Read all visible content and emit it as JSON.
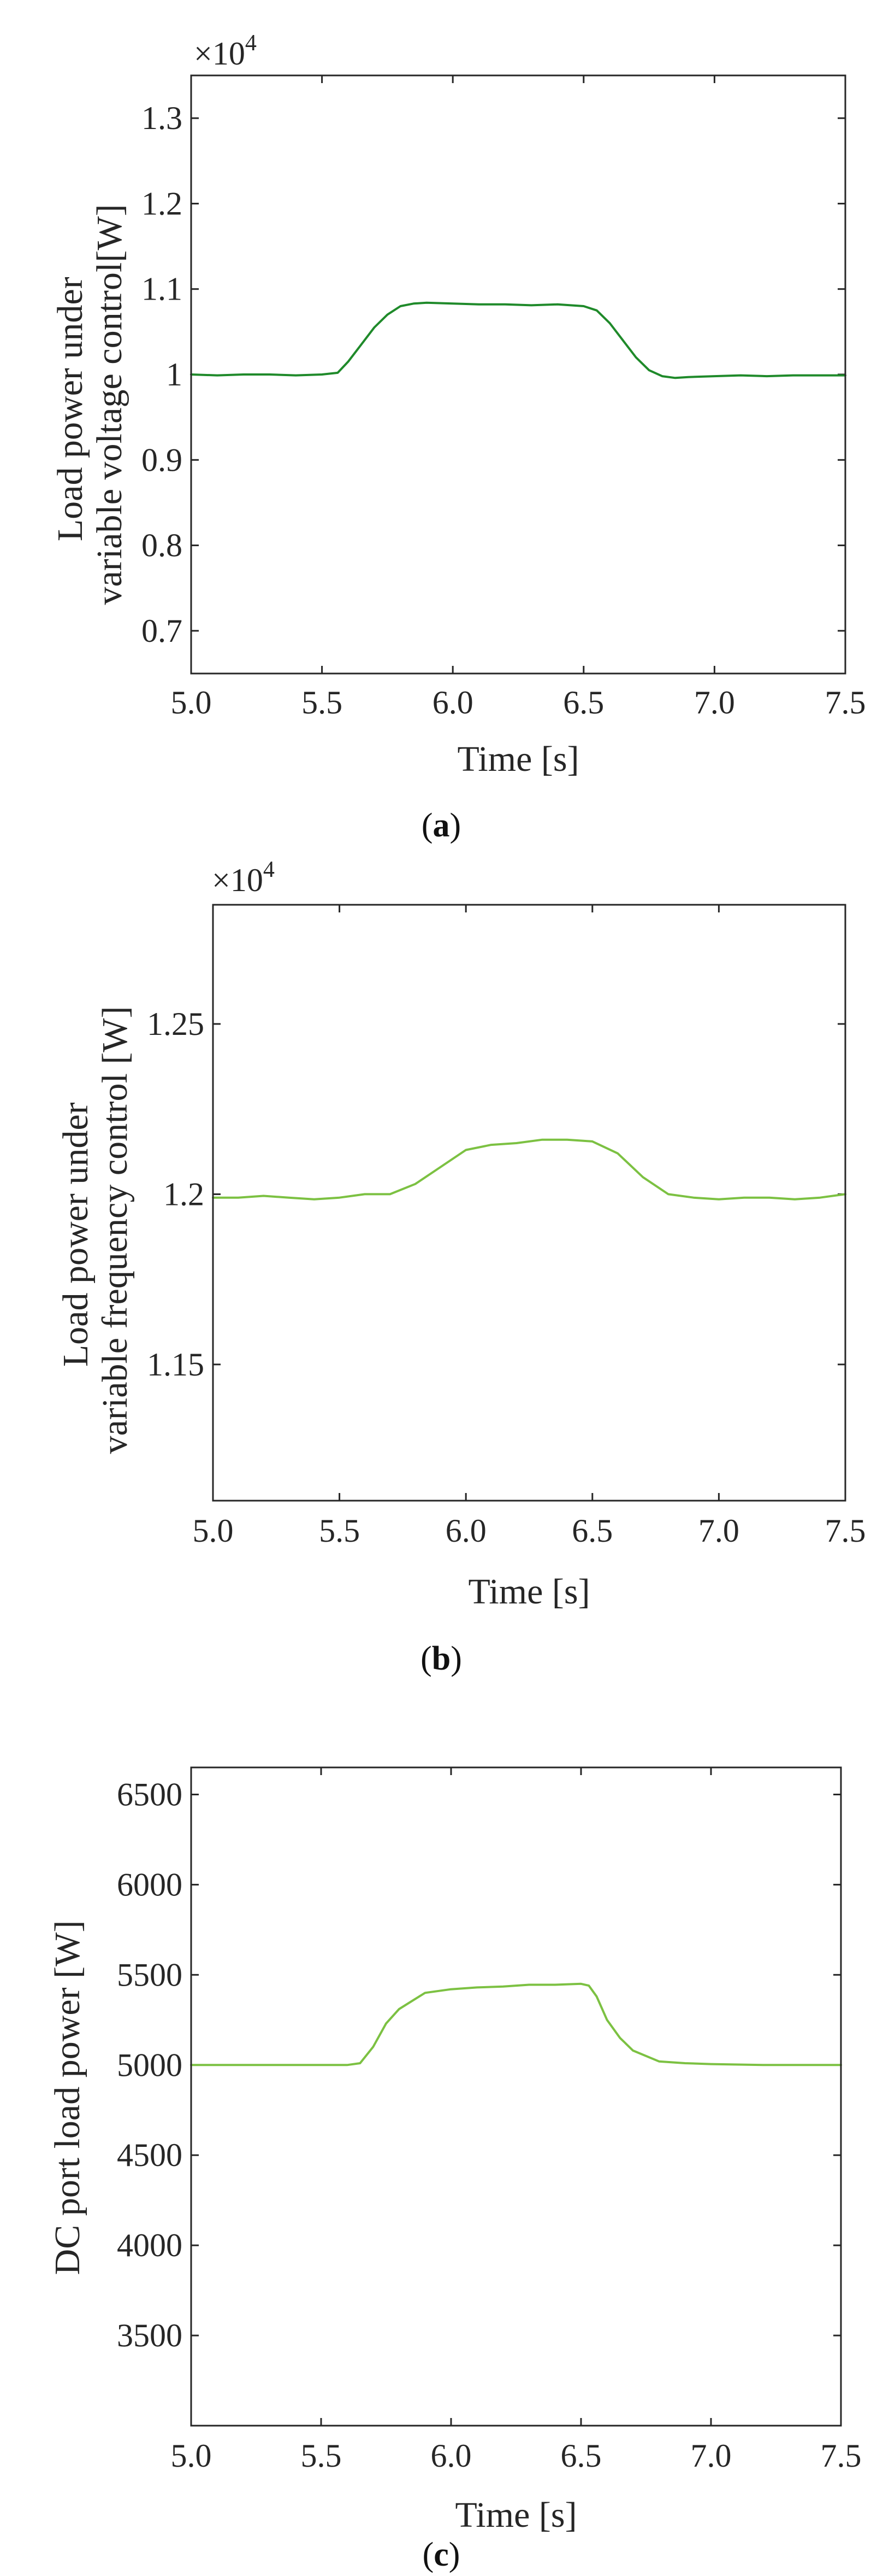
{
  "chart_data": [
    {
      "type": "line",
      "panel_label": "a",
      "xlabel": "Time [s]",
      "ylabel": [
        "Load power under",
        "variable voltage control[W]"
      ],
      "y_multiplier_text": "×10",
      "y_multiplier_exp": "4",
      "xlim": [
        5.0,
        7.5
      ],
      "ylim": [
        0.65,
        1.35
      ],
      "x_ticks": [
        5.0,
        5.5,
        6.0,
        6.5,
        7.0,
        7.5
      ],
      "x_tick_labels": [
        "5.0",
        "5.5",
        "6.0",
        "6.5",
        "7.0",
        "7.5"
      ],
      "y_ticks": [
        0.7,
        0.8,
        0.9,
        1.0,
        1.1,
        1.2,
        1.3
      ],
      "y_tick_labels": [
        "0.7",
        "0.8",
        "0.9",
        "1",
        "1.1",
        "1.2",
        "1.3"
      ],
      "grid": false,
      "series": [
        {
          "color": "#1f8a2a",
          "x": [
            5.0,
            5.1,
            5.2,
            5.3,
            5.4,
            5.5,
            5.56,
            5.6,
            5.65,
            5.7,
            5.75,
            5.8,
            5.85,
            5.9,
            6.0,
            6.1,
            6.2,
            6.3,
            6.4,
            6.5,
            6.55,
            6.6,
            6.65,
            6.7,
            6.75,
            6.8,
            6.85,
            6.9,
            7.0,
            7.1,
            7.2,
            7.3,
            7.4,
            7.5
          ],
          "y": [
            1.0,
            0.999,
            1.0,
            1.0,
            0.999,
            1.0,
            1.002,
            1.015,
            1.035,
            1.055,
            1.07,
            1.08,
            1.083,
            1.084,
            1.083,
            1.082,
            1.082,
            1.081,
            1.082,
            1.08,
            1.075,
            1.06,
            1.04,
            1.02,
            1.005,
            0.998,
            0.996,
            0.997,
            0.998,
            0.999,
            0.998,
            0.999,
            0.999,
            0.999
          ]
        }
      ]
    },
    {
      "type": "line",
      "panel_label": "b",
      "xlabel": "Time [s]",
      "ylabel": [
        "Load power under",
        "variable frequency control [W]"
      ],
      "y_multiplier_text": "×10",
      "y_multiplier_exp": "4",
      "xlim": [
        5.0,
        7.5
      ],
      "ylim": [
        1.11,
        1.285
      ],
      "x_ticks": [
        5.0,
        5.5,
        6.0,
        6.5,
        7.0,
        7.5
      ],
      "x_tick_labels": [
        "5.0",
        "5.5",
        "6.0",
        "6.5",
        "7.0",
        "7.5"
      ],
      "y_ticks": [
        1.15,
        1.2,
        1.25
      ],
      "y_tick_labels": [
        "1.15",
        "1.2",
        "1.25"
      ],
      "grid": false,
      "series": [
        {
          "color": "#7cc142",
          "x": [
            5.0,
            5.1,
            5.2,
            5.3,
            5.4,
            5.5,
            5.6,
            5.7,
            5.8,
            5.9,
            6.0,
            6.1,
            6.2,
            6.3,
            6.4,
            6.5,
            6.6,
            6.7,
            6.8,
            6.9,
            7.0,
            7.1,
            7.2,
            7.3,
            7.4,
            7.5
          ],
          "y": [
            1.199,
            1.199,
            1.1995,
            1.199,
            1.1985,
            1.199,
            1.2,
            1.2,
            1.203,
            1.208,
            1.213,
            1.2145,
            1.215,
            1.216,
            1.216,
            1.2155,
            1.212,
            1.205,
            1.2,
            1.199,
            1.1985,
            1.199,
            1.199,
            1.1985,
            1.199,
            1.2
          ]
        }
      ]
    },
    {
      "type": "line",
      "panel_label": "c",
      "xlabel": "Time [s]",
      "ylabel": [
        "DC port load power [W]"
      ],
      "y_multiplier_text": "",
      "y_multiplier_exp": "",
      "xlim": [
        5.0,
        7.5
      ],
      "ylim": [
        3000,
        6650
      ],
      "x_ticks": [
        5.0,
        5.5,
        6.0,
        6.5,
        7.0,
        7.5
      ],
      "x_tick_labels": [
        "5.0",
        "5.5",
        "6.0",
        "6.5",
        "7.0",
        "7.5"
      ],
      "y_ticks": [
        3500,
        4000,
        4500,
        5000,
        5500,
        6000,
        6500
      ],
      "y_tick_labels": [
        "3500",
        "4000",
        "4500",
        "5000",
        "5500",
        "6000",
        "6500"
      ],
      "grid": false,
      "series": [
        {
          "color": "#7cc142",
          "x": [
            5.0,
            5.2,
            5.4,
            5.6,
            5.65,
            5.7,
            5.75,
            5.8,
            5.9,
            6.0,
            6.1,
            6.2,
            6.3,
            6.4,
            6.5,
            6.53,
            6.56,
            6.6,
            6.65,
            6.7,
            6.8,
            6.9,
            7.0,
            7.2,
            7.4,
            7.5
          ],
          "y": [
            5000,
            5000,
            5000,
            5000,
            5010,
            5100,
            5230,
            5310,
            5400,
            5420,
            5430,
            5435,
            5445,
            5445,
            5450,
            5440,
            5380,
            5250,
            5150,
            5080,
            5020,
            5010,
            5005,
            5000,
            5000,
            5000
          ]
        }
      ]
    }
  ]
}
